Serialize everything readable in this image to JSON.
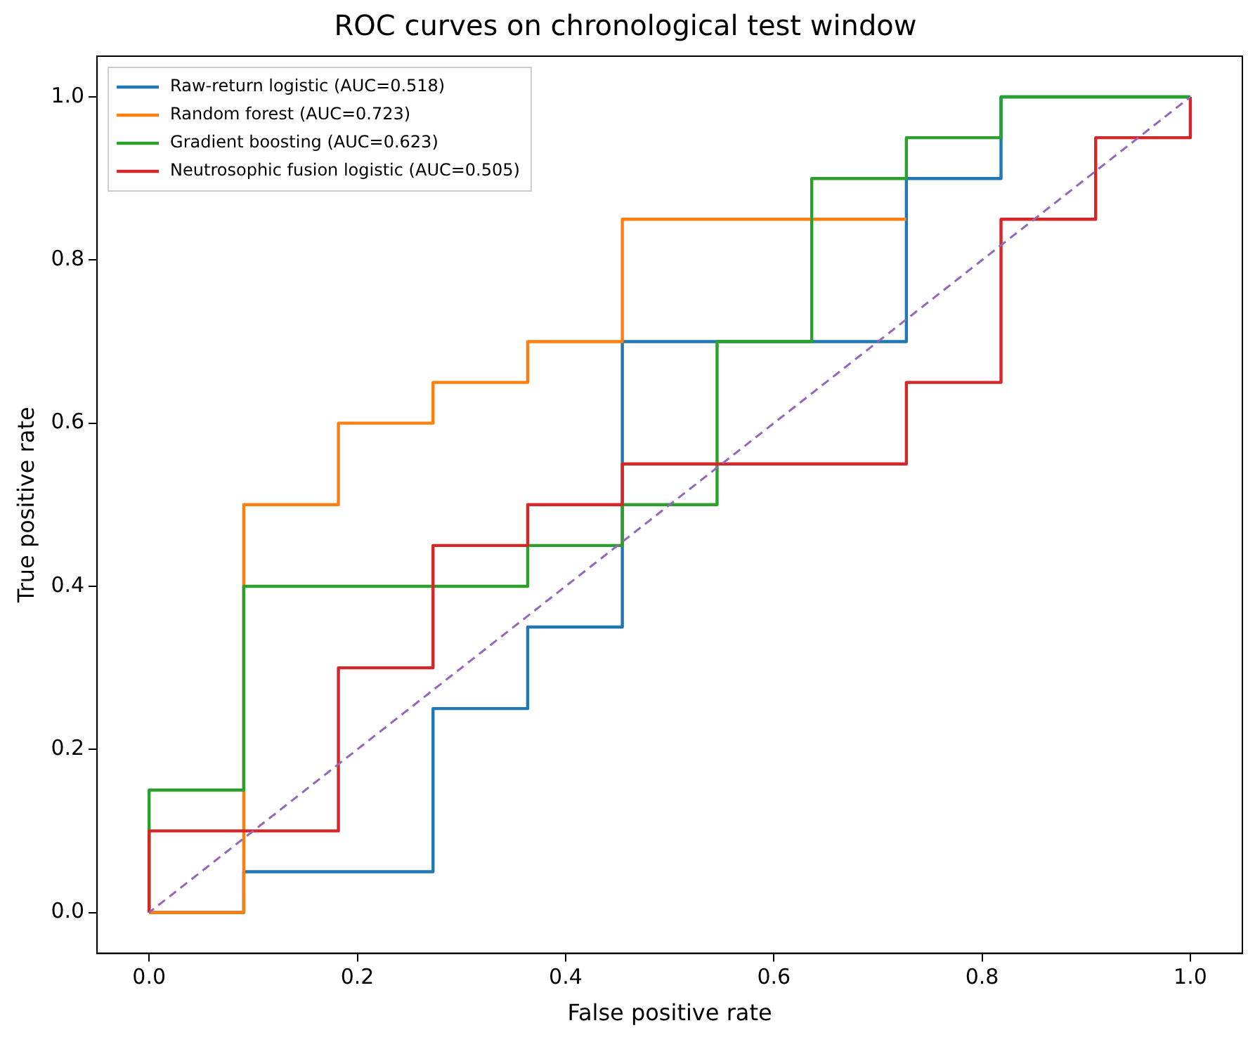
{
  "chart_data": {
    "type": "line",
    "title": "ROC curves on chronological test window",
    "xlabel": "False positive rate",
    "ylabel": "True positive rate",
    "xlim": [
      -0.05,
      1.05
    ],
    "ylim": [
      -0.05,
      1.05
    ],
    "xticks": [
      {
        "value": 0,
        "label": "0.0"
      },
      0.2,
      0.4,
      0.6,
      0.8,
      {
        "value": 1,
        "label": "1.0"
      }
    ],
    "yticks": [
      {
        "value": 0,
        "label": "0.0"
      },
      0.2,
      0.4,
      0.6,
      0.8,
      {
        "value": 1,
        "label": "1.0"
      }
    ],
    "grid": false,
    "legend": "top left",
    "marker": "none",
    "series": [
      {
        "name": "Raw-return logistic (AUC=0.518)",
        "color": "#1f77b4",
        "line_style": "solid",
        "x": [
          0,
          0.0909,
          0.0909,
          0.2727,
          0.2727,
          0.3636,
          0.3636,
          0.4545,
          0.4545,
          0.7273,
          0.7273,
          0.8182,
          0.8182,
          1
        ],
        "values": [
          0,
          0,
          0.05,
          0.05,
          0.25,
          0.25,
          0.35,
          0.35,
          0.7,
          0.7,
          0.9,
          0.9,
          1,
          1
        ]
      },
      {
        "name": "Random forest (AUC=0.723)",
        "color": "#ff7f0e",
        "line_style": "solid",
        "x": [
          0,
          0.0909,
          0.0909,
          0.1818,
          0.1818,
          0.2727,
          0.2727,
          0.3636,
          0.3636,
          0.4545,
          0.4545,
          0.7273
        ],
        "values": [
          0,
          0,
          0.5,
          0.5,
          0.6,
          0.6,
          0.65,
          0.65,
          0.7,
          0.7,
          0.85,
          0.85
        ]
      },
      {
        "name": "Gradient boosting (AUC=0.623)",
        "color": "#2ca02c",
        "line_style": "solid",
        "x": [
          0,
          0,
          0.0909,
          0.0909,
          0.3636,
          0.3636,
          0.4545,
          0.4545,
          0.5455,
          0.5455,
          0.6364,
          0.6364,
          0.7273,
          0.7273,
          0.8182,
          0.8182,
          1
        ],
        "values": [
          0,
          0.15,
          0.15,
          0.4,
          0.4,
          0.45,
          0.45,
          0.5,
          0.5,
          0.7,
          0.7,
          0.9,
          0.9,
          0.95,
          0.95,
          1,
          1
        ]
      },
      {
        "name": "Neutrosophic fusion logistic (AUC=0.505)",
        "color": "#d62728",
        "line_style": "solid",
        "x": [
          0,
          0,
          0.1818,
          0.1818,
          0.2727,
          0.2727,
          0.3636,
          0.3636,
          0.4545,
          0.4545,
          0.7273,
          0.7273,
          0.8182,
          0.8182,
          0.9091,
          0.9091,
          1,
          1
        ],
        "values": [
          0,
          0.1,
          0.1,
          0.3,
          0.3,
          0.45,
          0.45,
          0.5,
          0.5,
          0.55,
          0.55,
          0.65,
          0.65,
          0.85,
          0.85,
          0.95,
          0.95,
          1
        ]
      },
      {
        "color": "#9467bd",
        "line_style": "dashed",
        "x": [
          0,
          1
        ],
        "values": [
          0,
          1
        ]
      }
    ]
  }
}
